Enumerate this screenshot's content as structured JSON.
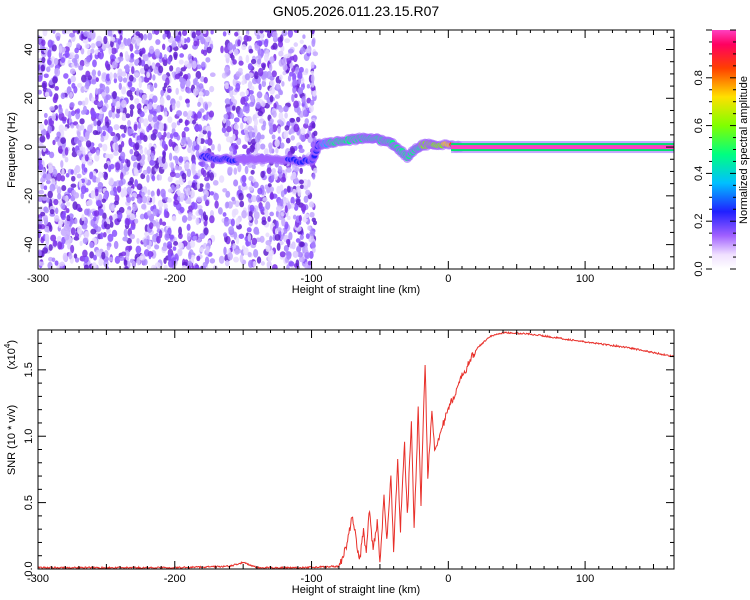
{
  "title": "GN05.2026.011.23.15.R07",
  "colors": {
    "snr_line": "#e8302a",
    "background_points": "#8a2be2",
    "frame": "#000000"
  },
  "chart_data": [
    {
      "type": "heatmap",
      "xlabel": "Height of straight line (km)",
      "ylabel": "Frequency (Hz)",
      "xlim": [
        -300,
        165
      ],
      "ylim": [
        -50,
        48
      ],
      "xticks": [
        -300,
        -200,
        -100,
        0,
        100
      ],
      "yticks": [
        -40,
        -20,
        0,
        20,
        40
      ],
      "colorbar": {
        "label": "Normalized spectral amplitude",
        "range": [
          0,
          1
        ],
        "ticks": [
          0.0,
          0.2,
          0.4,
          0.6,
          0.8
        ],
        "colormap": "rainbow (white-violet-blue-cyan-green-yellow-red-magenta)"
      },
      "noise_region_x": [
        -300,
        -97
      ],
      "noise_gap_x": [
        -172,
        -164
      ],
      "signal_track": [
        {
          "x": -180,
          "freq": -4,
          "amp": 0.35
        },
        {
          "x": -160,
          "freq": -5,
          "amp": 0.25
        },
        {
          "x": -130,
          "freq": -5,
          "amp": 0.2
        },
        {
          "x": -100,
          "freq": -6,
          "amp": 0.3
        },
        {
          "x": -95,
          "freq": 1,
          "amp": 0.3
        },
        {
          "x": -85,
          "freq": 2,
          "amp": 0.55
        },
        {
          "x": -70,
          "freq": 3,
          "amp": 0.55
        },
        {
          "x": -60,
          "freq": 4,
          "amp": 0.5
        },
        {
          "x": -50,
          "freq": 3,
          "amp": 0.5
        },
        {
          "x": -40,
          "freq": 1,
          "amp": 0.55
        },
        {
          "x": -30,
          "freq": -4,
          "amp": 0.5
        },
        {
          "x": -20,
          "freq": 1,
          "amp": 0.6
        },
        {
          "x": -10,
          "freq": 1,
          "amp": 0.6
        },
        {
          "x": 10,
          "freq": 0,
          "amp": 1.0
        },
        {
          "x": 160,
          "freq": 0,
          "amp": 1.0
        }
      ]
    },
    {
      "type": "line",
      "xlabel": "Height of straight line (km)",
      "ylabel": "SNR (10 * v/v)",
      "yscale_label": "(x10",
      "yscale_exp": "4",
      "xlim": [
        -300,
        165
      ],
      "ylim": [
        0,
        1.8
      ],
      "xticks": [
        -300,
        -200,
        -100,
        0,
        100
      ],
      "yticks": [
        0.0,
        0.5,
        1.0,
        1.5
      ],
      "series": [
        {
          "x": [
            -300,
            -250,
            -200,
            -160,
            -150,
            -140,
            -110,
            -80,
            -75,
            -70,
            -65,
            -62,
            -60,
            -58,
            -55,
            -52,
            -50,
            -47,
            -45,
            -42,
            -40,
            -37,
            -35,
            -32,
            -30,
            -27,
            -25,
            -22,
            -20,
            -17,
            -15,
            -12,
            -10,
            -5,
            0,
            10,
            20,
            30,
            40,
            60,
            80,
            100,
            130,
            165
          ],
          "y": [
            0.01,
            0.01,
            0.01,
            0.02,
            0.05,
            0.01,
            0.01,
            0.02,
            0.15,
            0.4,
            0.05,
            0.3,
            0.1,
            0.45,
            0.15,
            0.35,
            0.05,
            0.55,
            0.2,
            0.7,
            0.15,
            0.8,
            0.3,
            0.95,
            0.4,
            1.1,
            0.3,
            1.2,
            0.5,
            1.55,
            0.7,
            1.2,
            0.9,
            1.05,
            1.2,
            1.45,
            1.65,
            1.75,
            1.78,
            1.77,
            1.74,
            1.71,
            1.67,
            1.6
          ]
        }
      ]
    }
  ]
}
